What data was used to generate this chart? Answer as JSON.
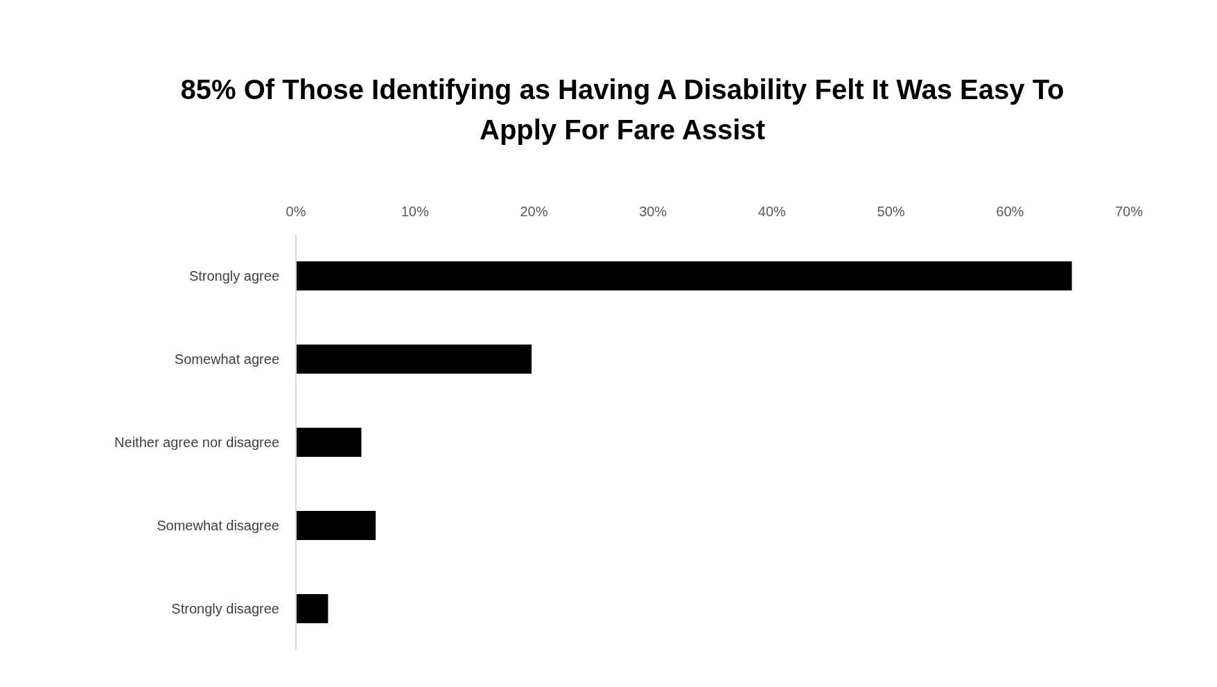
{
  "chart_data": {
    "type": "bar",
    "orientation": "horizontal",
    "title": "85% Of Those Identifying as Having A Disability Felt It Was Easy To Apply For Fare Assist",
    "categories": [
      "Strongly agree",
      "Somewhat agree",
      "Neither agree nor disagree",
      "Somewhat disagree",
      "Strongly disagree"
    ],
    "values": [
      65.2,
      19.8,
      5.5,
      6.7,
      2.7
    ],
    "color": "#000000",
    "xlim": [
      0,
      70
    ],
    "xticks": [
      {
        "value": 0,
        "label": "0%"
      },
      {
        "value": 10,
        "label": "10%"
      },
      {
        "value": 20,
        "label": "20%"
      },
      {
        "value": 30,
        "label": "30%"
      },
      {
        "value": 40,
        "label": "40%"
      },
      {
        "value": 50,
        "label": "50%"
      },
      {
        "value": 60,
        "label": "60%"
      },
      {
        "value": 70,
        "label": "70%"
      }
    ],
    "grid": false
  }
}
